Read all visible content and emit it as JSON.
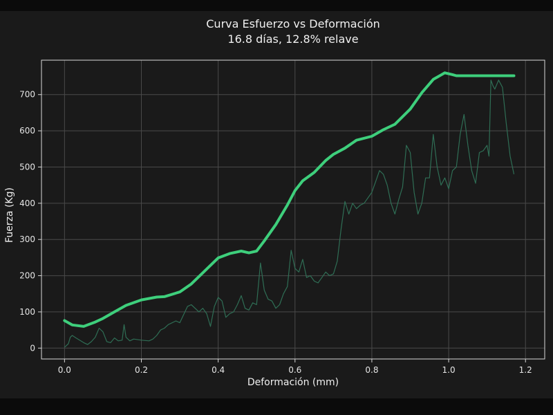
{
  "chart_data": {
    "type": "line",
    "title": "Curva Esfuerzo vs Deformación",
    "subtitle": "16.8 días, 12.8% relave",
    "xlabel": "Deformación (mm)",
    "ylabel": "Fuerza (Kg)",
    "xlim": [
      -0.06,
      1.25
    ],
    "ylim": [
      -30,
      795
    ],
    "xticks": [
      0.0,
      0.2,
      0.4,
      0.6,
      0.8,
      1.0,
      1.2
    ],
    "xtick_labels": [
      "0.0",
      "0.2",
      "0.4",
      "0.6",
      "0.8",
      "1.0",
      "1.2"
    ],
    "yticks": [
      0,
      100,
      200,
      300,
      400,
      500,
      600,
      700
    ],
    "ytick_labels": [
      "0",
      "100",
      "200",
      "300",
      "400",
      "500",
      "600",
      "700"
    ],
    "grid": true,
    "colors": {
      "envelope": "#3ecf7c",
      "raw": "#2f6e55",
      "grid": "#4a4a4a",
      "axes": "#d9d9d9",
      "background": "#1a1a1a"
    },
    "series": [
      {
        "x": [
          0.0,
          0.02,
          0.05,
          0.08,
          0.1,
          0.13,
          0.16,
          0.2,
          0.24,
          0.26,
          0.3,
          0.33,
          0.36,
          0.4,
          0.43,
          0.46,
          0.48,
          0.5,
          0.52,
          0.55,
          0.58,
          0.6,
          0.62,
          0.65,
          0.68,
          0.7,
          0.73,
          0.76,
          0.8,
          0.83,
          0.86,
          0.9,
          0.93,
          0.96,
          0.99,
          1.01,
          1.02,
          1.04,
          1.08,
          1.12,
          1.17
        ],
        "values": [
          76,
          64,
          60,
          72,
          82,
          100,
          118,
          133,
          141,
          142,
          155,
          177,
          208,
          249,
          261,
          268,
          263,
          268,
          296,
          341,
          395,
          435,
          462,
          485,
          518,
          535,
          552,
          574,
          585,
          603,
          618,
          660,
          705,
          742,
          760,
          755,
          752,
          752,
          752,
          752,
          752
        ]
      },
      {
        "x": [
          0.0,
          0.01,
          0.015,
          0.02,
          0.03,
          0.05,
          0.06,
          0.07,
          0.08,
          0.09,
          0.1,
          0.11,
          0.12,
          0.13,
          0.14,
          0.15,
          0.155,
          0.16,
          0.17,
          0.18,
          0.2,
          0.22,
          0.23,
          0.24,
          0.25,
          0.26,
          0.27,
          0.29,
          0.3,
          0.32,
          0.33,
          0.35,
          0.36,
          0.37,
          0.38,
          0.39,
          0.4,
          0.41,
          0.42,
          0.43,
          0.44,
          0.45,
          0.46,
          0.47,
          0.48,
          0.49,
          0.5,
          0.51,
          0.52,
          0.53,
          0.54,
          0.55,
          0.56,
          0.57,
          0.58,
          0.59,
          0.6,
          0.61,
          0.62,
          0.63,
          0.64,
          0.65,
          0.66,
          0.67,
          0.68,
          0.69,
          0.7,
          0.71,
          0.72,
          0.73,
          0.74,
          0.75,
          0.76,
          0.77,
          0.78,
          0.8,
          0.81,
          0.82,
          0.83,
          0.84,
          0.85,
          0.86,
          0.87,
          0.88,
          0.89,
          0.9,
          0.91,
          0.92,
          0.93,
          0.94,
          0.95,
          0.96,
          0.97,
          0.98,
          0.99,
          1.0,
          1.01,
          1.02,
          1.03,
          1.04,
          1.05,
          1.06,
          1.07,
          1.08,
          1.09,
          1.1,
          1.105,
          1.11,
          1.115,
          1.12,
          1.13,
          1.14,
          1.15,
          1.16,
          1.17
        ],
        "values": [
          2,
          12,
          30,
          35,
          28,
          15,
          10,
          18,
          30,
          55,
          45,
          18,
          15,
          28,
          20,
          22,
          65,
          30,
          20,
          25,
          22,
          20,
          25,
          35,
          50,
          55,
          65,
          75,
          70,
          115,
          120,
          100,
          110,
          95,
          60,
          115,
          140,
          130,
          85,
          95,
          100,
          120,
          145,
          110,
          105,
          125,
          120,
          235,
          160,
          135,
          130,
          110,
          120,
          150,
          170,
          270,
          220,
          210,
          245,
          195,
          200,
          185,
          180,
          195,
          210,
          200,
          205,
          240,
          330,
          405,
          370,
          400,
          385,
          395,
          400,
          430,
          460,
          490,
          480,
          450,
          400,
          370,
          410,
          445,
          560,
          540,
          430,
          370,
          400,
          470,
          470,
          590,
          500,
          450,
          470,
          440,
          490,
          500,
          590,
          645,
          560,
          490,
          455,
          540,
          545,
          560,
          530,
          740,
          725,
          715,
          740,
          720,
          620,
          530,
          480
        ]
      }
    ]
  }
}
